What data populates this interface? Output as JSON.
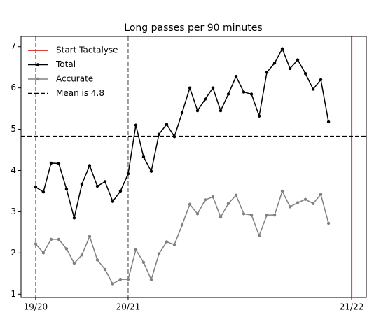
{
  "chart_data": {
    "type": "line",
    "title": "Long passes per 90 minutes",
    "x": [
      0,
      1,
      2,
      3,
      4,
      5,
      6,
      7,
      8,
      9,
      10,
      11,
      12,
      13,
      14,
      15,
      16,
      17,
      18,
      19,
      20,
      21,
      22,
      23,
      24,
      25,
      26,
      27,
      28,
      29,
      30,
      31,
      32,
      33,
      34,
      35,
      36,
      37,
      38
    ],
    "series": [
      {
        "name": "Total",
        "color": "#000000",
        "values": [
          3.6,
          3.48,
          4.18,
          4.17,
          3.55,
          2.85,
          3.67,
          4.12,
          3.62,
          3.73,
          3.25,
          3.5,
          3.92,
          5.1,
          4.33,
          3.98,
          4.88,
          5.12,
          4.82,
          5.4,
          6.0,
          5.45,
          5.73,
          6.0,
          5.45,
          5.85,
          6.28,
          5.9,
          5.85,
          5.32,
          6.38,
          6.6,
          6.95,
          6.47,
          6.68,
          6.35,
          5.97,
          6.2,
          5.18
        ]
      },
      {
        "name": "Accurate",
        "color": "#808080",
        "values": [
          2.22,
          2.0,
          2.33,
          2.33,
          2.1,
          1.75,
          1.95,
          2.4,
          1.83,
          1.6,
          1.25,
          1.36,
          1.36,
          2.08,
          1.77,
          1.35,
          1.98,
          2.27,
          2.2,
          2.68,
          3.18,
          2.95,
          3.29,
          3.36,
          2.87,
          3.2,
          3.4,
          2.95,
          2.92,
          2.42,
          2.92,
          2.92,
          3.5,
          3.12,
          3.22,
          3.3,
          3.2,
          3.42,
          2.72
        ]
      }
    ],
    "mean_line": {
      "name": "Mean is 4.8",
      "value": 4.83,
      "color": "#000000"
    },
    "start_line": {
      "name": "Start Tactalyse",
      "x": 41,
      "color": "#d9403a"
    },
    "season_lines": [
      0,
      12
    ],
    "xlim": [
      -1.9,
      42.9
    ],
    "ylim": [
      0.92,
      7.25
    ],
    "xticks": [
      {
        "value": 0,
        "label": "19/20"
      },
      {
        "value": 12,
        "label": "20/21"
      },
      {
        "value": 41,
        "label": "21/22"
      }
    ],
    "yticks": [
      1,
      2,
      3,
      4,
      5,
      6,
      7
    ],
    "legend": "upper left"
  }
}
